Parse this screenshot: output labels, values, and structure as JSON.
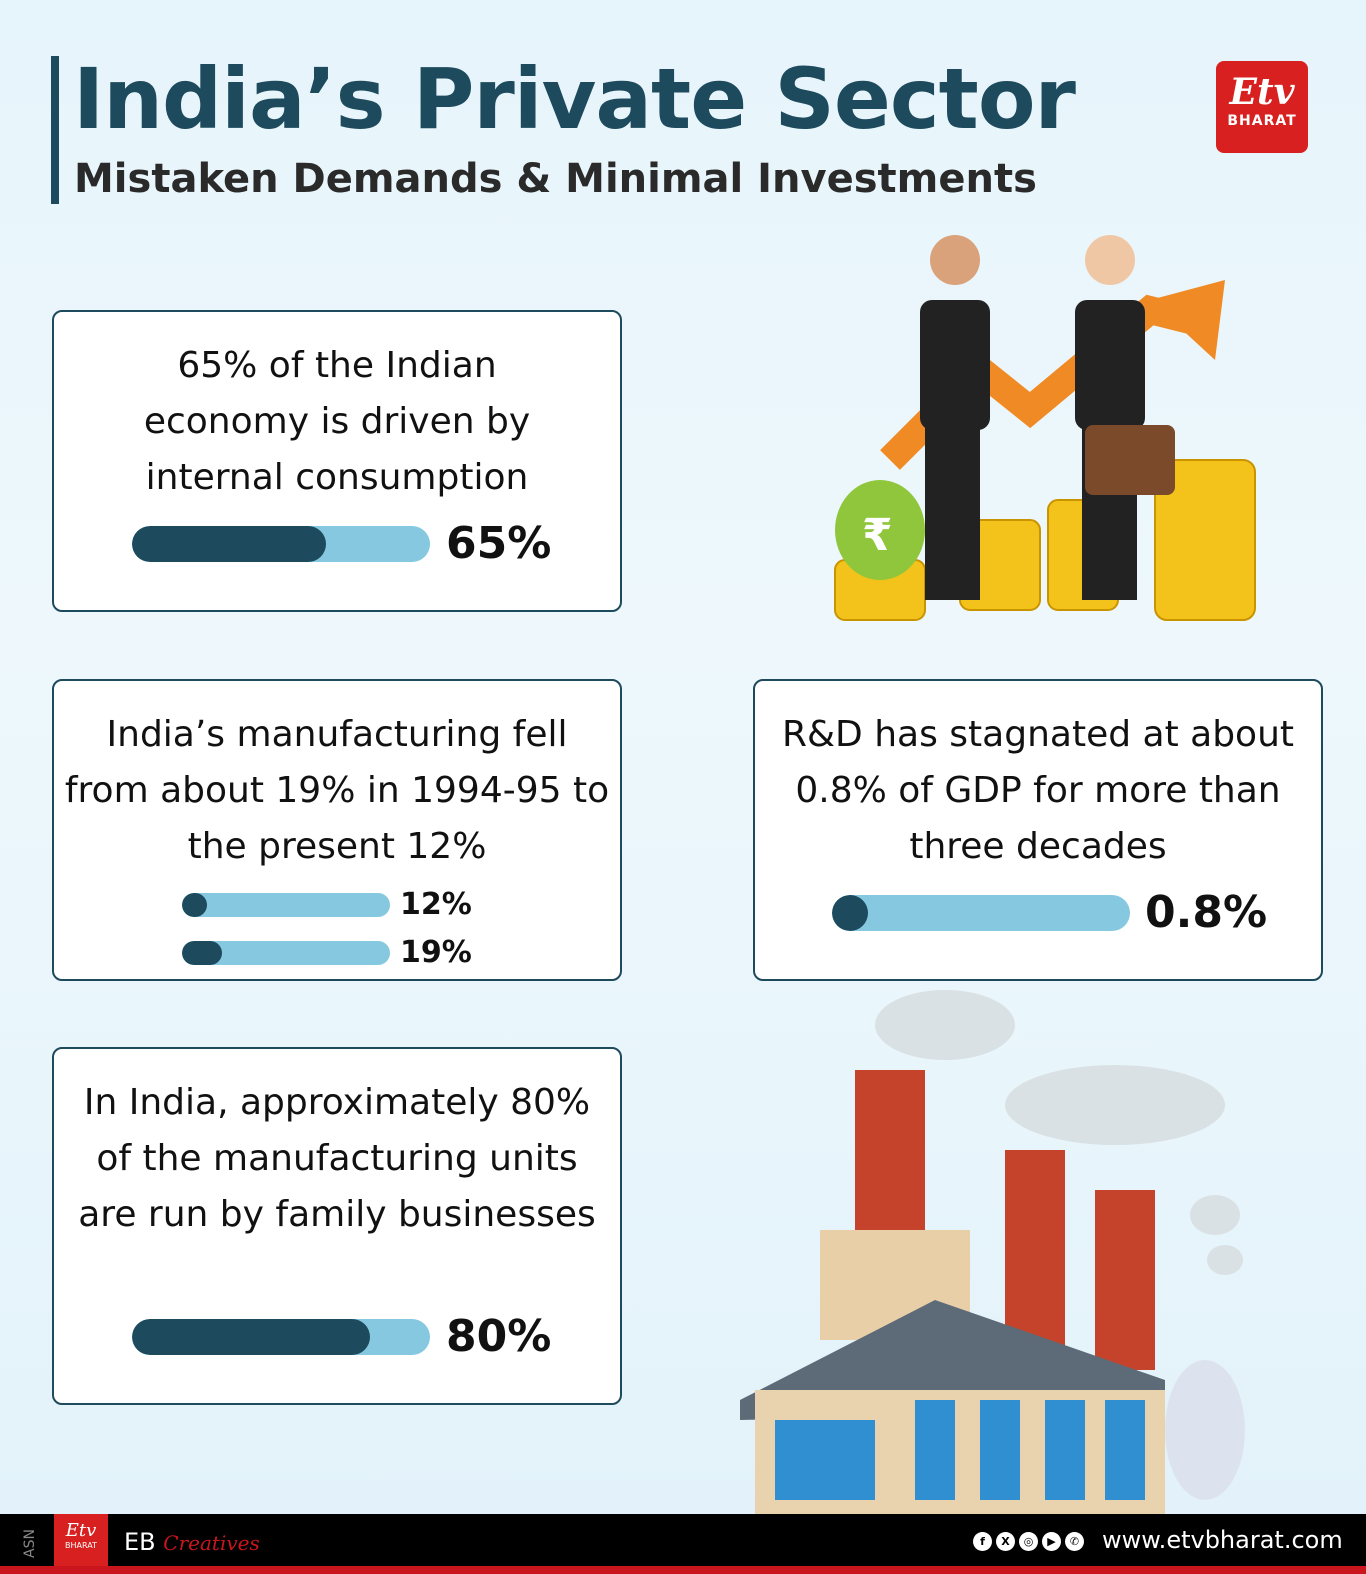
{
  "header": {
    "title": "India’s Private Sector",
    "subtitle": "Mistaken Demands & Minimal Investments",
    "logo_text": "BHARAT"
  },
  "colors": {
    "accent": "#1d4a5c",
    "bar_track": "#85c8e0",
    "brand_red": "#d7201f"
  },
  "cards": [
    {
      "text": "65% of the Indian economy is driven by internal consumption",
      "bars": [
        {
          "value": 65,
          "label": "65%"
        }
      ]
    },
    {
      "text": "India’s manufacturing fell from about 19% in 1994-95 to the present 12%",
      "bars": [
        {
          "value": 12,
          "label": "12%"
        },
        {
          "value": 19,
          "label": "19%"
        }
      ]
    },
    {
      "text": "R&D has stagnated at about 0.8% of GDP for more than three decades",
      "bars": [
        {
          "value": 0.8,
          "label": "0.8%"
        }
      ]
    },
    {
      "text": "In India, approximately 80% of the manufacturing units are run by family businesses",
      "bars": [
        {
          "value": 80,
          "label": "80%"
        }
      ]
    }
  ],
  "illustrations": {
    "rupee_symbol": "₹"
  },
  "footer": {
    "side_text": "ASN",
    "logo_text": "BHARAT",
    "brand": "EB",
    "brand_script": "Creatives",
    "social_icons": [
      "facebook-icon",
      "x-icon",
      "instagram-icon",
      "youtube-icon",
      "whatsapp-icon"
    ],
    "url": "www.etvbharat.com"
  }
}
